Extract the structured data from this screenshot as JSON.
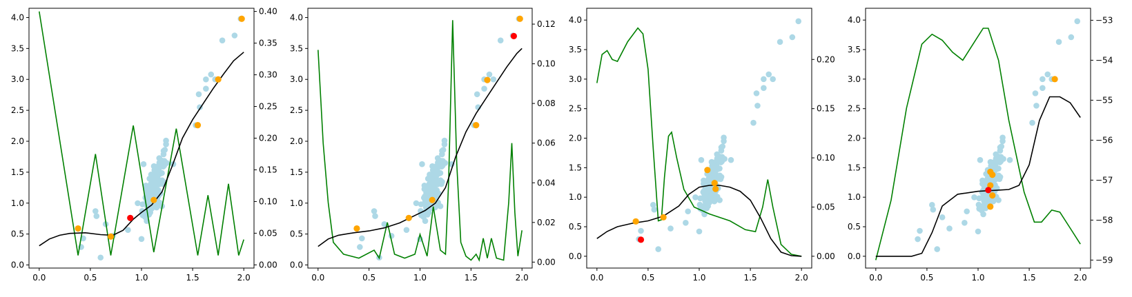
{
  "chart_data": [
    {
      "type": "scatter",
      "xlim": [
        -0.1,
        2.1
      ],
      "ylim": [
        -0.05,
        4.15
      ],
      "y2lim": [
        -0.005,
        0.405
      ],
      "xticks": [
        "0.0",
        "0.5",
        "1.0",
        "1.5",
        "2.0"
      ],
      "yticks": [
        "0.0",
        "0.5",
        "1.0",
        "1.5",
        "2.0",
        "2.5",
        "3.0",
        "3.5",
        "4.0"
      ],
      "y2ticks": [
        "0.00",
        "0.05",
        "0.10",
        "0.15",
        "0.20",
        "0.25",
        "0.30",
        "0.35",
        "0.40"
      ],
      "orange_points": [
        [
          0.38,
          0.59
        ],
        [
          0.7,
          0.46
        ],
        [
          1.12,
          1.05
        ],
        [
          1.55,
          2.26
        ],
        [
          1.75,
          3.0
        ],
        [
          1.98,
          3.98
        ]
      ],
      "red_points": [
        [
          0.89,
          0.76
        ]
      ],
      "mean_curve": [
        [
          0.0,
          0.31
        ],
        [
          0.1,
          0.42
        ],
        [
          0.2,
          0.48
        ],
        [
          0.3,
          0.51
        ],
        [
          0.45,
          0.52
        ],
        [
          0.6,
          0.49
        ],
        [
          0.72,
          0.48
        ],
        [
          0.82,
          0.56
        ],
        [
          0.92,
          0.74
        ],
        [
          1.0,
          0.85
        ],
        [
          1.1,
          0.97
        ],
        [
          1.2,
          1.18
        ],
        [
          1.3,
          1.6
        ],
        [
          1.4,
          2.05
        ],
        [
          1.5,
          2.35
        ],
        [
          1.6,
          2.6
        ],
        [
          1.7,
          2.85
        ],
        [
          1.8,
          3.08
        ],
        [
          1.9,
          3.3
        ],
        [
          2.0,
          3.44
        ]
      ],
      "acquisition_curve": [
        [
          0.0,
          0.4
        ],
        [
          0.38,
          0.015
        ],
        [
          0.55,
          0.175
        ],
        [
          0.7,
          0.015
        ],
        [
          0.92,
          0.22
        ],
        [
          1.12,
          0.02
        ],
        [
          1.34,
          0.215
        ],
        [
          1.55,
          0.015
        ],
        [
          1.65,
          0.11
        ],
        [
          1.75,
          0.015
        ],
        [
          1.85,
          0.128
        ],
        [
          1.95,
          0.015
        ],
        [
          2.0,
          0.04
        ]
      ]
    },
    {
      "type": "scatter",
      "xlim": [
        -0.1,
        2.1
      ],
      "ylim": [
        -0.05,
        4.15
      ],
      "y2lim": [
        -0.003,
        0.128
      ],
      "xticks": [
        "0.0",
        "0.5",
        "1.0",
        "1.5",
        "2.0"
      ],
      "yticks": [
        "0.0",
        "0.5",
        "1.0",
        "1.5",
        "2.0",
        "2.5",
        "3.0",
        "3.5",
        "4.0"
      ],
      "y2ticks": [
        "0.00",
        "0.02",
        "0.04",
        "0.06",
        "0.08",
        "0.10",
        "0.12"
      ],
      "orange_points": [
        [
          0.38,
          0.59
        ],
        [
          0.89,
          0.76
        ],
        [
          1.12,
          1.05
        ],
        [
          1.55,
          2.26
        ],
        [
          1.66,
          2.99
        ],
        [
          1.98,
          3.98
        ]
      ],
      "red_points": [
        [
          1.92,
          3.7
        ]
      ],
      "mean_curve": [
        [
          0.0,
          0.3
        ],
        [
          0.1,
          0.42
        ],
        [
          0.2,
          0.48
        ],
        [
          0.35,
          0.52
        ],
        [
          0.5,
          0.55
        ],
        [
          0.65,
          0.6
        ],
        [
          0.8,
          0.68
        ],
        [
          0.95,
          0.8
        ],
        [
          1.05,
          0.88
        ],
        [
          1.15,
          1.0
        ],
        [
          1.25,
          1.25
        ],
        [
          1.35,
          1.75
        ],
        [
          1.45,
          2.15
        ],
        [
          1.55,
          2.45
        ],
        [
          1.65,
          2.7
        ],
        [
          1.75,
          2.95
        ],
        [
          1.85,
          3.2
        ],
        [
          1.95,
          3.42
        ],
        [
          2.0,
          3.5
        ]
      ],
      "acquisition_curve": [
        [
          0.0,
          0.107
        ],
        [
          0.05,
          0.06
        ],
        [
          0.1,
          0.03
        ],
        [
          0.15,
          0.01
        ],
        [
          0.25,
          0.004
        ],
        [
          0.4,
          0.002
        ],
        [
          0.55,
          0.006
        ],
        [
          0.6,
          0.002
        ],
        [
          0.68,
          0.02
        ],
        [
          0.75,
          0.004
        ],
        [
          0.85,
          0.002
        ],
        [
          0.95,
          0.004
        ],
        [
          1.0,
          0.014
        ],
        [
          1.07,
          0.003
        ],
        [
          1.13,
          0.028
        ],
        [
          1.2,
          0.006
        ],
        [
          1.25,
          0.004
        ],
        [
          1.28,
          0.04
        ],
        [
          1.32,
          0.122
        ],
        [
          1.36,
          0.05
        ],
        [
          1.4,
          0.01
        ],
        [
          1.45,
          0.003
        ],
        [
          1.5,
          0.001
        ],
        [
          1.55,
          0.004
        ],
        [
          1.58,
          0.001
        ],
        [
          1.62,
          0.012
        ],
        [
          1.66,
          0.002
        ],
        [
          1.7,
          0.012
        ],
        [
          1.75,
          0.002
        ],
        [
          1.82,
          0.001
        ],
        [
          1.87,
          0.03
        ],
        [
          1.9,
          0.06
        ],
        [
          1.93,
          0.025
        ],
        [
          1.96,
          0.003
        ],
        [
          2.0,
          0.016
        ]
      ]
    },
    {
      "type": "scatter",
      "xlim": [
        -0.1,
        2.1
      ],
      "ylim": [
        -0.2,
        4.2
      ],
      "y2lim": [
        -0.012,
        0.252
      ],
      "xticks": [
        "0.0",
        "0.5",
        "1.0",
        "1.5",
        "2.0"
      ],
      "yticks": [
        "0.0",
        "0.5",
        "1.0",
        "1.5",
        "2.0",
        "2.5",
        "3.0",
        "3.5",
        "4.0"
      ],
      "y2ticks": [
        "0.00",
        "0.05",
        "0.10",
        "0.15",
        "0.20"
      ],
      "orange_points": [
        [
          0.38,
          0.59
        ],
        [
          0.65,
          0.66
        ],
        [
          1.08,
          1.46
        ],
        [
          1.15,
          1.24
        ],
        [
          1.16,
          1.14
        ]
      ],
      "red_points": [
        [
          0.43,
          0.28
        ]
      ],
      "mean_curve": [
        [
          0.0,
          0.3
        ],
        [
          0.1,
          0.42
        ],
        [
          0.2,
          0.5
        ],
        [
          0.35,
          0.56
        ],
        [
          0.5,
          0.6
        ],
        [
          0.65,
          0.68
        ],
        [
          0.8,
          0.85
        ],
        [
          0.9,
          1.05
        ],
        [
          1.0,
          1.17
        ],
        [
          1.1,
          1.2
        ],
        [
          1.2,
          1.2
        ],
        [
          1.3,
          1.17
        ],
        [
          1.4,
          1.1
        ],
        [
          1.5,
          0.95
        ],
        [
          1.6,
          0.65
        ],
        [
          1.7,
          0.3
        ],
        [
          1.8,
          0.07
        ],
        [
          1.9,
          0.01
        ],
        [
          2.0,
          0.0
        ]
      ],
      "acquisition_curve": [
        [
          0.0,
          0.176
        ],
        [
          0.05,
          0.205
        ],
        [
          0.1,
          0.209
        ],
        [
          0.15,
          0.2
        ],
        [
          0.2,
          0.198
        ],
        [
          0.3,
          0.218
        ],
        [
          0.4,
          0.232
        ],
        [
          0.45,
          0.226
        ],
        [
          0.5,
          0.19
        ],
        [
          0.55,
          0.11
        ],
        [
          0.6,
          0.036
        ],
        [
          0.63,
          0.037
        ],
        [
          0.66,
          0.08
        ],
        [
          0.7,
          0.122
        ],
        [
          0.73,
          0.126
        ],
        [
          0.78,
          0.1
        ],
        [
          0.85,
          0.068
        ],
        [
          0.95,
          0.05
        ],
        [
          1.1,
          0.043
        ],
        [
          1.3,
          0.036
        ],
        [
          1.45,
          0.027
        ],
        [
          1.55,
          0.025
        ],
        [
          1.62,
          0.05
        ],
        [
          1.67,
          0.078
        ],
        [
          1.72,
          0.05
        ],
        [
          1.8,
          0.012
        ],
        [
          1.9,
          0.002
        ],
        [
          2.0,
          0.0
        ]
      ]
    },
    {
      "type": "scatter",
      "xlim": [
        -0.1,
        2.1
      ],
      "ylim": [
        -0.2,
        4.2
      ],
      "y2lim": [
        -59.2,
        -52.7
      ],
      "xticks": [
        "0.0",
        "0.5",
        "1.0",
        "1.5",
        "2.0"
      ],
      "yticks": [
        "0.0",
        "0.5",
        "1.0",
        "1.5",
        "2.0",
        "2.5",
        "3.0",
        "3.5",
        "4.0"
      ],
      "y2ticks": [
        "−53",
        "−54",
        "−55",
        "−56",
        "−57",
        "−58",
        "−59"
      ],
      "orange_points": [
        [
          1.12,
          1.43
        ],
        [
          1.14,
          1.38
        ],
        [
          1.12,
          1.2
        ],
        [
          1.14,
          1.03
        ],
        [
          1.12,
          0.84
        ],
        [
          1.75,
          3.0
        ]
      ],
      "red_points": [
        [
          1.1,
          1.12
        ]
      ],
      "mean_curve": [
        [
          0.0,
          0.0
        ],
        [
          0.2,
          0.0
        ],
        [
          0.35,
          0.0
        ],
        [
          0.45,
          0.05
        ],
        [
          0.55,
          0.4
        ],
        [
          0.65,
          0.85
        ],
        [
          0.8,
          1.05
        ],
        [
          1.0,
          1.1
        ],
        [
          1.2,
          1.12
        ],
        [
          1.3,
          1.13
        ],
        [
          1.4,
          1.2
        ],
        [
          1.5,
          1.55
        ],
        [
          1.6,
          2.3
        ],
        [
          1.7,
          2.7
        ],
        [
          1.8,
          2.7
        ],
        [
          1.9,
          2.6
        ],
        [
          2.0,
          2.35
        ]
      ],
      "acquisition_curve": [
        [
          0.0,
          -59.0
        ],
        [
          0.15,
          -57.5
        ],
        [
          0.3,
          -55.2
        ],
        [
          0.45,
          -53.6
        ],
        [
          0.55,
          -53.35
        ],
        [
          0.65,
          -53.5
        ],
        [
          0.75,
          -53.8
        ],
        [
          0.85,
          -54.0
        ],
        [
          0.95,
          -53.6
        ],
        [
          1.05,
          -53.2
        ],
        [
          1.1,
          -53.2
        ],
        [
          1.2,
          -54.0
        ],
        [
          1.3,
          -55.5
        ],
        [
          1.45,
          -57.3
        ],
        [
          1.55,
          -58.05
        ],
        [
          1.62,
          -58.05
        ],
        [
          1.72,
          -57.75
        ],
        [
          1.8,
          -57.8
        ],
        [
          1.9,
          -58.2
        ],
        [
          2.0,
          -58.6
        ]
      ]
    }
  ]
}
